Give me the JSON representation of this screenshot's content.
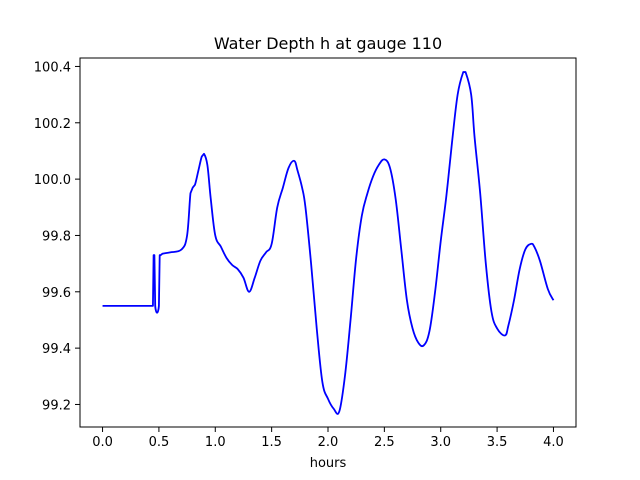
{
  "chart_data": {
    "type": "line",
    "title": "Water Depth h at gauge 110",
    "xlabel": "hours",
    "ylabel": "",
    "xlim": [
      -0.2,
      4.2
    ],
    "ylim": [
      99.12,
      100.43
    ],
    "grid": false,
    "legend": "none",
    "xticks": [
      0.0,
      0.5,
      1.0,
      1.5,
      2.0,
      2.5,
      3.0,
      3.5,
      4.0
    ],
    "xtick_labels": [
      "0.0",
      "0.5",
      "1.0",
      "1.5",
      "2.0",
      "2.5",
      "3.0",
      "3.5",
      "4.0"
    ],
    "yticks": [
      99.2,
      99.4,
      99.6,
      99.8,
      100.0,
      100.2,
      100.4
    ],
    "ytick_labels": [
      "99.2",
      "99.4",
      "99.6",
      "99.8",
      "100.0",
      "100.2",
      "100.4"
    ],
    "series": [
      {
        "color": "#0000ff",
        "x": [
          0.0,
          0.44,
          0.447,
          0.453,
          0.46,
          0.467,
          0.5,
          0.507,
          0.515,
          0.53,
          0.6,
          0.7,
          0.75,
          0.78,
          0.8,
          0.82,
          0.85,
          0.88,
          0.9,
          0.93,
          0.96,
          1.0,
          1.05,
          1.1,
          1.15,
          1.2,
          1.25,
          1.3,
          1.35,
          1.4,
          1.45,
          1.5,
          1.55,
          1.6,
          1.65,
          1.7,
          1.73,
          1.77,
          1.8,
          1.85,
          1.9,
          1.95,
          2.0,
          2.05,
          2.1,
          2.15,
          2.2,
          2.25,
          2.3,
          2.35,
          2.4,
          2.45,
          2.5,
          2.55,
          2.6,
          2.65,
          2.7,
          2.75,
          2.8,
          2.85,
          2.9,
          2.95,
          3.0,
          3.05,
          3.1,
          3.15,
          3.2,
          3.22,
          3.27,
          3.3,
          3.35,
          3.4,
          3.45,
          3.5,
          3.57,
          3.6,
          3.65,
          3.7,
          3.75,
          3.8,
          3.83,
          3.88,
          3.95,
          4.0
        ],
        "y": [
          99.55,
          99.55,
          99.55,
          99.73,
          99.73,
          99.55,
          99.55,
          99.73,
          99.73,
          99.735,
          99.74,
          99.75,
          99.8,
          99.95,
          99.97,
          99.98,
          100.03,
          100.08,
          100.09,
          100.05,
          99.93,
          99.8,
          99.76,
          99.72,
          99.695,
          99.68,
          99.65,
          99.6,
          99.65,
          99.71,
          99.74,
          99.77,
          99.9,
          99.97,
          100.04,
          100.065,
          100.03,
          99.97,
          99.9,
          99.7,
          99.47,
          99.28,
          99.22,
          99.185,
          99.175,
          99.3,
          99.5,
          99.72,
          99.87,
          99.95,
          100.01,
          100.05,
          100.07,
          100.04,
          99.93,
          99.75,
          99.57,
          99.47,
          99.42,
          99.41,
          99.46,
          99.6,
          99.78,
          99.94,
          100.13,
          100.3,
          100.38,
          100.38,
          100.3,
          100.15,
          99.95,
          99.7,
          99.53,
          99.47,
          99.445,
          99.48,
          99.57,
          99.68,
          99.75,
          99.77,
          99.76,
          99.71,
          99.61,
          99.57
        ]
      }
    ]
  }
}
